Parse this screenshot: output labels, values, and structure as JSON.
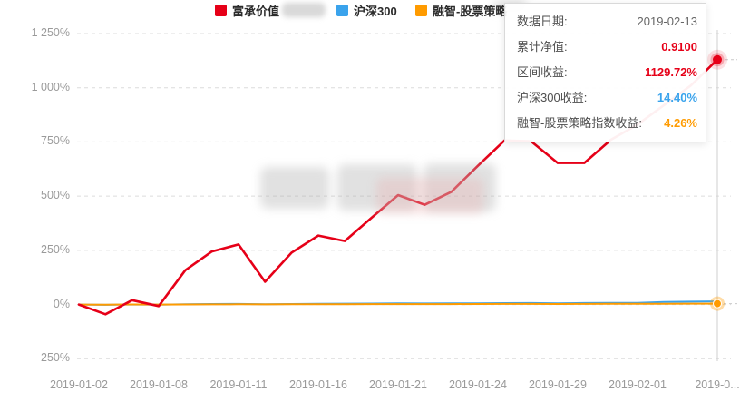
{
  "legend": {
    "items": [
      {
        "label": "富承价值",
        "color": "#e60018",
        "redacted": true
      },
      {
        "label": "沪深300",
        "color": "#3aa3ec",
        "redacted": false
      },
      {
        "label": "融智-股票策略",
        "color": "#ff9b00",
        "redacted": false
      }
    ]
  },
  "tooltip": {
    "rows": [
      {
        "label": "数据日期:",
        "value": "2019-02-13",
        "color": "#666666",
        "bold": false
      },
      {
        "label": "累计净值:",
        "value": "0.9100",
        "color": "#e60018",
        "bold": true
      },
      {
        "label": "区间收益:",
        "value": "1129.72%",
        "color": "#e60018",
        "bold": true
      },
      {
        "label": "沪深300收益:",
        "value": "14.40%",
        "color": "#3aa3ec",
        "bold": true
      },
      {
        "label": "融智-股票策略指数收益:",
        "value": "4.26%",
        "color": "#ff9b00",
        "bold": true
      }
    ]
  },
  "axes": {
    "y_ticks": [
      {
        "label": "1 250%",
        "value": 1250
      },
      {
        "label": "1 000%",
        "value": 1000
      },
      {
        "label": "750%",
        "value": 750
      },
      {
        "label": "500%",
        "value": 500
      },
      {
        "label": "250%",
        "value": 250
      },
      {
        "label": "0%",
        "value": 0
      },
      {
        "label": "-250%",
        "value": -250
      }
    ],
    "x_ticks": [
      {
        "label": "2019-01-02",
        "index": 0
      },
      {
        "label": "2019-01-08",
        "index": 3
      },
      {
        "label": "2019-01-11",
        "index": 6
      },
      {
        "label": "2019-01-16",
        "index": 9
      },
      {
        "label": "2019-01-21",
        "index": 12
      },
      {
        "label": "2019-01-24",
        "index": 15
      },
      {
        "label": "2019-01-29",
        "index": 18
      },
      {
        "label": "2019-02-01",
        "index": 21
      },
      {
        "label": "2019-0...",
        "index": 24
      }
    ]
  },
  "chart_data": {
    "type": "line",
    "title": "",
    "xlabel": "",
    "ylabel": "",
    "y_unit": "%",
    "ylim": [
      -250,
      1250
    ],
    "grid": "horizontal-dashed",
    "legend_position": "top",
    "hovered_point": {
      "date": "2019-02-13",
      "区间收益": 1129.72,
      "累计净值": 0.91,
      "沪深300收益": 14.4,
      "融智收益": 4.26
    },
    "x": [
      "2019-01-02",
      "2019-01-03",
      "2019-01-04",
      "2019-01-08",
      "2019-01-09",
      "2019-01-10",
      "2019-01-11",
      "2019-01-14",
      "2019-01-15",
      "2019-01-16",
      "2019-01-17",
      "2019-01-18",
      "2019-01-21",
      "2019-01-22",
      "2019-01-23",
      "2019-01-24",
      "2019-01-25",
      "2019-01-28",
      "2019-01-29",
      "2019-01-30",
      "2019-01-31",
      "2019-02-01",
      "2019-02-11",
      "2019-02-12",
      "2019-02-13"
    ],
    "series": [
      {
        "name": "富承价值",
        "color": "#e60018",
        "values": [
          0,
          -45,
          20,
          -7,
          158,
          245,
          277,
          105,
          240,
          318,
          293,
          400,
          505,
          460,
          520,
          640,
          757,
          753,
          653,
          653,
          760,
          830,
          920,
          1010,
          1129.72
        ]
      },
      {
        "name": "沪深300",
        "color": "#3aa3ec",
        "values": [
          0,
          -1.5,
          0.5,
          -1,
          1.5,
          2.5,
          3,
          1.5,
          2.5,
          3.5,
          4,
          4.5,
          5.5,
          5,
          5.5,
          6,
          6.5,
          7,
          6,
          7,
          7.5,
          8,
          11.5,
          13.5,
          14.4
        ]
      },
      {
        "name": "融智-股票策略指数",
        "color": "#ff9b00",
        "values": [
          0,
          -0.3,
          0.2,
          -0.1,
          0.5,
          0.8,
          1.1,
          0.7,
          1.1,
          1.4,
          1.6,
          1.9,
          2.1,
          2.0,
          2.2,
          2.5,
          2.7,
          2.9,
          2.6,
          3.0,
          3.2,
          3.4,
          3.8,
          4.1,
          4.26
        ]
      }
    ]
  }
}
